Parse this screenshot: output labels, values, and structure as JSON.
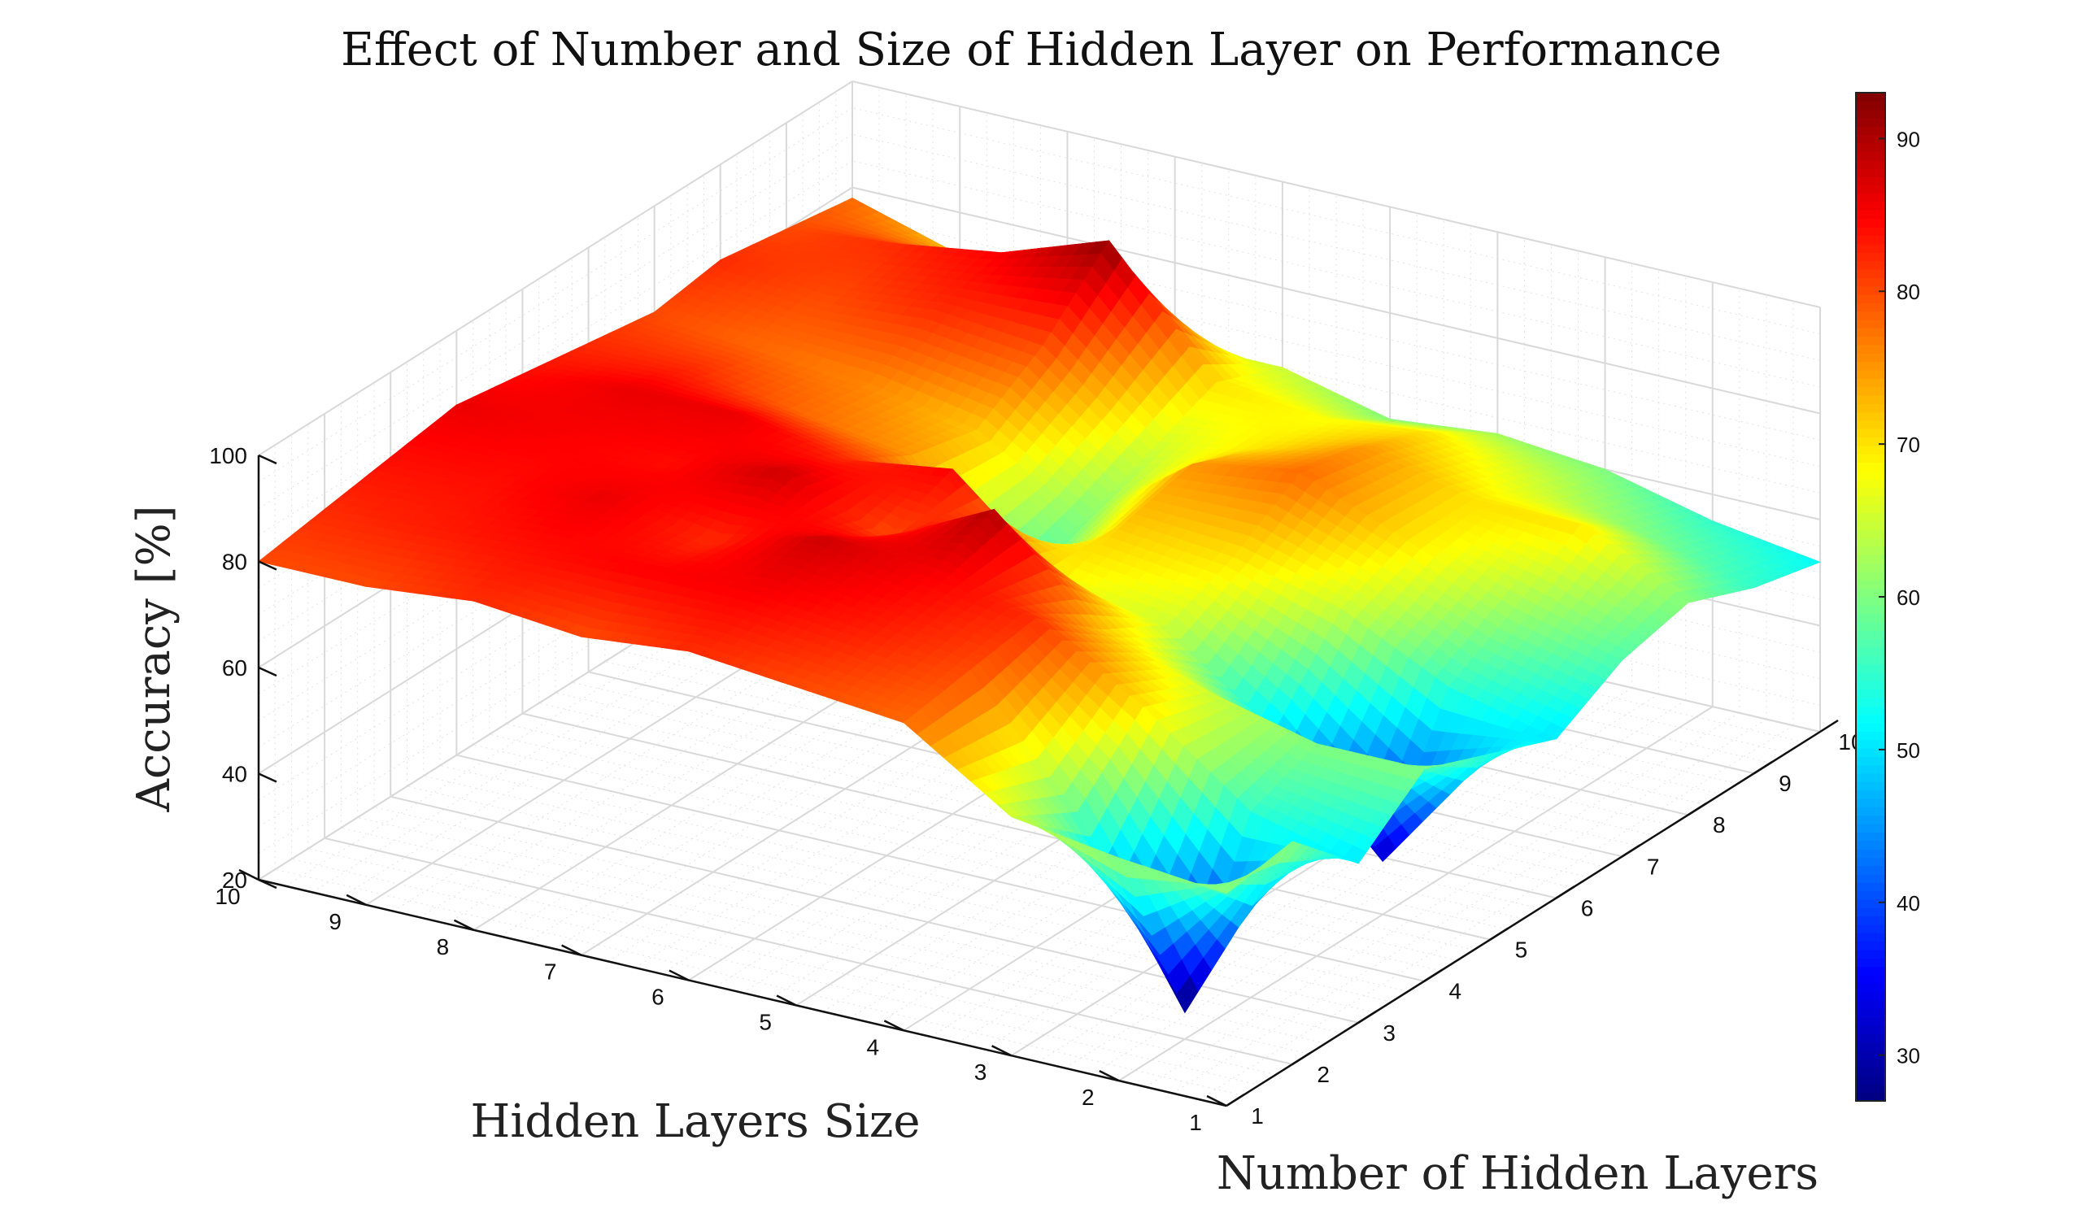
{
  "chart_data": {
    "type": "surface",
    "title": "Effect of Number and Size of Hidden Layer on Performance",
    "xlabel": "Number of Hidden Layers",
    "ylabel": "Hidden Layers Size",
    "zlabel": "Accuracy [%]",
    "x": [
      1,
      2,
      3,
      4,
      5,
      6,
      7,
      8,
      9,
      10
    ],
    "y": [
      1,
      2,
      3,
      4,
      5,
      6,
      7,
      8,
      9,
      10
    ],
    "x_ticks": [
      "1",
      "2",
      "3",
      "4",
      "5",
      "6",
      "7",
      "8",
      "9",
      "10"
    ],
    "y_ticks": [
      "1",
      "2",
      "3",
      "4",
      "5",
      "6",
      "7",
      "8",
      "9",
      "10"
    ],
    "z_ticks": [
      "20",
      "40",
      "60",
      "80",
      "100"
    ],
    "zlim": [
      20,
      100
    ],
    "colormap": "jet",
    "colorbar": {
      "range": [
        27,
        93
      ],
      "ticks": [
        "30",
        "40",
        "50",
        "60",
        "70",
        "80",
        "90"
      ]
    },
    "grid": true,
    "z": [
      [
        60,
        62,
        50,
        60,
        55,
        50,
        57,
        60,
        55,
        52
      ],
      [
        62,
        25,
        55,
        60,
        30,
        55,
        62,
        70,
        60,
        55
      ],
      [
        65,
        58,
        70,
        65,
        50,
        65,
        70,
        70,
        65,
        60
      ],
      [
        78,
        80,
        82,
        72,
        65,
        70,
        78,
        75,
        70,
        62
      ],
      [
        80,
        83,
        85,
        90,
        68,
        72,
        75,
        70,
        68,
        60
      ],
      [
        82,
        85,
        88,
        80,
        85,
        55,
        60,
        65,
        70,
        65
      ],
      [
        80,
        85,
        82,
        88,
        82,
        75,
        72,
        80,
        92,
        65
      ],
      [
        82,
        84,
        86,
        84,
        86,
        78,
        76,
        82,
        85,
        70
      ],
      [
        80,
        83,
        84,
        85,
        86,
        82,
        78,
        80,
        82,
        72
      ],
      [
        80,
        82,
        84,
        86,
        84,
        82,
        80,
        82,
        80,
        78
      ]
    ]
  }
}
